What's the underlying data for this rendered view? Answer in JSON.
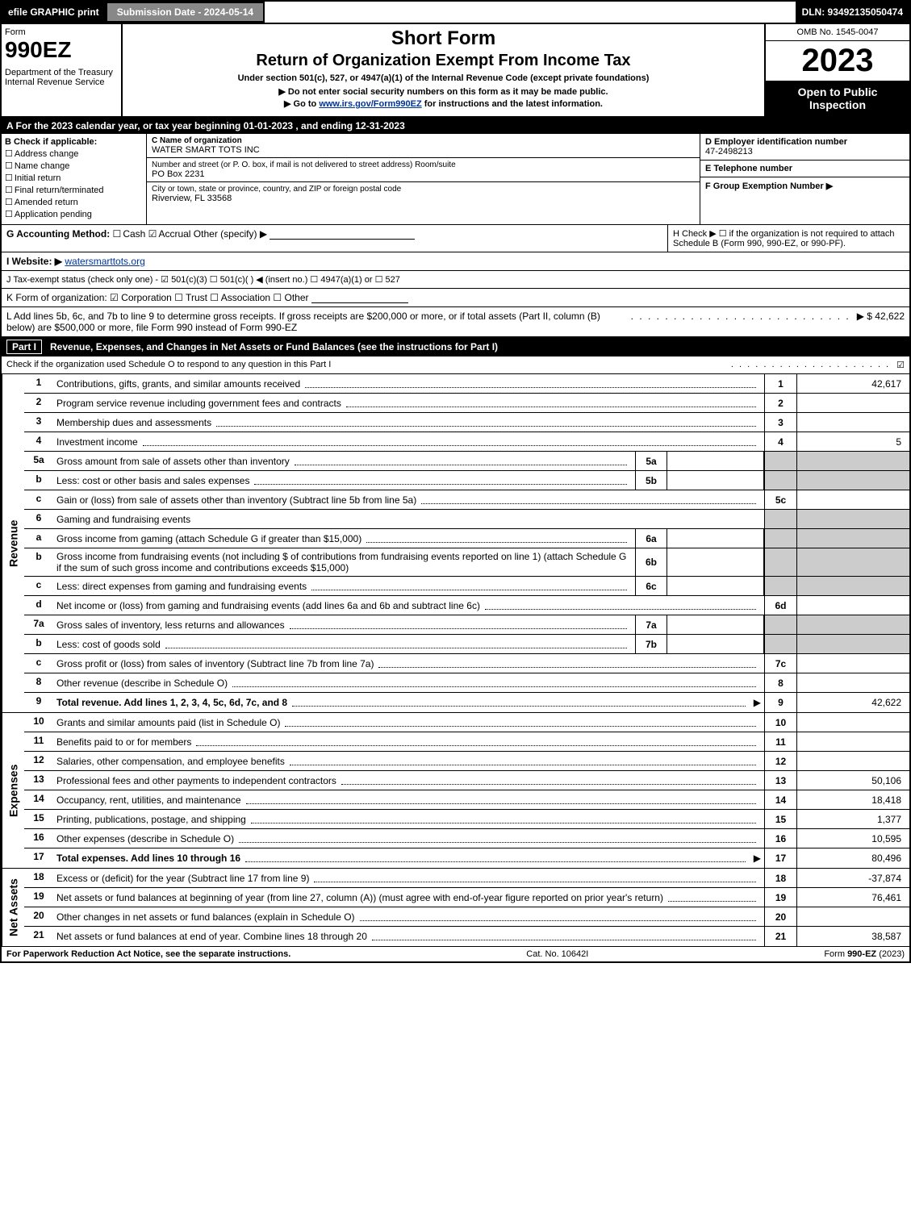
{
  "topbar": {
    "efile": "efile GRAPHIC print",
    "submission": "Submission Date - 2024-05-14",
    "dln": "DLN: 93492135050474"
  },
  "header": {
    "form_label": "Form",
    "form_number": "990EZ",
    "dept": "Department of the Treasury\nInternal Revenue Service",
    "title_short": "Short Form",
    "title_main": "Return of Organization Exempt From Income Tax",
    "subtitle": "Under section 501(c), 527, or 4947(a)(1) of the Internal Revenue Code (except private foundations)",
    "warn1": "▶ Do not enter social security numbers on this form as it may be made public.",
    "warn2_pre": "▶ Go to ",
    "warn2_link": "www.irs.gov/Form990EZ",
    "warn2_post": " for instructions and the latest information.",
    "omb": "OMB No. 1545-0047",
    "year": "2023",
    "inspection": "Open to Public Inspection"
  },
  "sectionA": "A  For the 2023 calendar year, or tax year beginning 01-01-2023 , and ending 12-31-2023",
  "sectionB": {
    "label": "B  Check if applicable:",
    "opts": [
      "Address change",
      "Name change",
      "Initial return",
      "Final return/terminated",
      "Amended return",
      "Application pending"
    ]
  },
  "sectionC": {
    "label": "C Name of organization",
    "name": "WATER SMART TOTS INC",
    "street_hint": "Number and street (or P. O. box, if mail is not delivered to street address)      Room/suite",
    "street": "PO Box 2231",
    "city_hint": "City or town, state or province, country, and ZIP or foreign postal code",
    "city": "Riverview, FL  33568"
  },
  "sectionD": {
    "label": "D Employer identification number",
    "value": "47-2498213"
  },
  "sectionE": {
    "label": "E Telephone number",
    "value": ""
  },
  "sectionF": {
    "label": "F Group Exemption Number   ▶",
    "value": ""
  },
  "sectionG": {
    "label": "G Accounting Method:",
    "cash": "Cash",
    "accrual": "Accrual",
    "other": "Other (specify) ▶"
  },
  "sectionH": "H   Check ▶  ☐  if the organization is not required to attach Schedule B (Form 990, 990-EZ, or 990-PF).",
  "sectionI": {
    "label": "I Website: ▶",
    "value": "watersmarttots.org"
  },
  "sectionJ": "J Tax-exempt status (check only one) -  ☑ 501(c)(3)  ☐ 501(c)(  ) ◀ (insert no.)  ☐ 4947(a)(1) or  ☐ 527",
  "sectionK": "K Form of organization:   ☑ Corporation   ☐ Trust   ☐ Association   ☐ Other",
  "sectionL": {
    "text": "L Add lines 5b, 6c, and 7b to line 9 to determine gross receipts. If gross receipts are $200,000 or more, or if total assets (Part II, column (B) below) are $500,000 or more, file Form 990 instead of Form 990-EZ",
    "value": "▶ $ 42,622"
  },
  "part1": {
    "name": "Part I",
    "title": "Revenue, Expenses, and Changes in Net Assets or Fund Balances (see the instructions for Part I)",
    "checknote": "Check if the organization used Schedule O to respond to any question in this Part I",
    "checked": "☑"
  },
  "revenue_label": "Revenue",
  "expenses_label": "Expenses",
  "netassets_label": "Net Assets",
  "lines": {
    "l1": {
      "n": "1",
      "d": "Contributions, gifts, grants, and similar amounts received",
      "rn": "1",
      "rv": "42,617"
    },
    "l2": {
      "n": "2",
      "d": "Program service revenue including government fees and contracts",
      "rn": "2",
      "rv": ""
    },
    "l3": {
      "n": "3",
      "d": "Membership dues and assessments",
      "rn": "3",
      "rv": ""
    },
    "l4": {
      "n": "4",
      "d": "Investment income",
      "rn": "4",
      "rv": "5"
    },
    "l5a": {
      "n": "5a",
      "d": "Gross amount from sale of assets other than inventory",
      "sc": "5a",
      "sv": ""
    },
    "l5b": {
      "n": "b",
      "d": "Less: cost or other basis and sales expenses",
      "sc": "5b",
      "sv": ""
    },
    "l5c": {
      "n": "c",
      "d": "Gain or (loss) from sale of assets other than inventory (Subtract line 5b from line 5a)",
      "rn": "5c",
      "rv": ""
    },
    "l6": {
      "n": "6",
      "d": "Gaming and fundraising events"
    },
    "l6a": {
      "n": "a",
      "d": "Gross income from gaming (attach Schedule G if greater than $15,000)",
      "sc": "6a",
      "sv": ""
    },
    "l6b": {
      "n": "b",
      "d": "Gross income from fundraising events (not including $                        of contributions from fundraising events reported on line 1) (attach Schedule G if the sum of such gross income and contributions exceeds $15,000)",
      "sc": "6b",
      "sv": ""
    },
    "l6c": {
      "n": "c",
      "d": "Less: direct expenses from gaming and fundraising events",
      "sc": "6c",
      "sv": ""
    },
    "l6d": {
      "n": "d",
      "d": "Net income or (loss) from gaming and fundraising events (add lines 6a and 6b and subtract line 6c)",
      "rn": "6d",
      "rv": ""
    },
    "l7a": {
      "n": "7a",
      "d": "Gross sales of inventory, less returns and allowances",
      "sc": "7a",
      "sv": ""
    },
    "l7b": {
      "n": "b",
      "d": "Less: cost of goods sold",
      "sc": "7b",
      "sv": ""
    },
    "l7c": {
      "n": "c",
      "d": "Gross profit or (loss) from sales of inventory (Subtract line 7b from line 7a)",
      "rn": "7c",
      "rv": ""
    },
    "l8": {
      "n": "8",
      "d": "Other revenue (describe in Schedule O)",
      "rn": "8",
      "rv": ""
    },
    "l9": {
      "n": "9",
      "d": "Total revenue. Add lines 1, 2, 3, 4, 5c, 6d, 7c, and 8",
      "rn": "9",
      "rv": "42,622",
      "bold": true
    },
    "l10": {
      "n": "10",
      "d": "Grants and similar amounts paid (list in Schedule O)",
      "rn": "10",
      "rv": ""
    },
    "l11": {
      "n": "11",
      "d": "Benefits paid to or for members",
      "rn": "11",
      "rv": ""
    },
    "l12": {
      "n": "12",
      "d": "Salaries, other compensation, and employee benefits",
      "rn": "12",
      "rv": ""
    },
    "l13": {
      "n": "13",
      "d": "Professional fees and other payments to independent contractors",
      "rn": "13",
      "rv": "50,106"
    },
    "l14": {
      "n": "14",
      "d": "Occupancy, rent, utilities, and maintenance",
      "rn": "14",
      "rv": "18,418"
    },
    "l15": {
      "n": "15",
      "d": "Printing, publications, postage, and shipping",
      "rn": "15",
      "rv": "1,377"
    },
    "l16": {
      "n": "16",
      "d": "Other expenses (describe in Schedule O)",
      "rn": "16",
      "rv": "10,595"
    },
    "l17": {
      "n": "17",
      "d": "Total expenses. Add lines 10 through 16",
      "rn": "17",
      "rv": "80,496",
      "bold": true
    },
    "l18": {
      "n": "18",
      "d": "Excess or (deficit) for the year (Subtract line 17 from line 9)",
      "rn": "18",
      "rv": "-37,874"
    },
    "l19": {
      "n": "19",
      "d": "Net assets or fund balances at beginning of year (from line 27, column (A)) (must agree with end-of-year figure reported on prior year's return)",
      "rn": "19",
      "rv": "76,461"
    },
    "l20": {
      "n": "20",
      "d": "Other changes in net assets or fund balances (explain in Schedule O)",
      "rn": "20",
      "rv": ""
    },
    "l21": {
      "n": "21",
      "d": "Net assets or fund balances at end of year. Combine lines 18 through 20",
      "rn": "21",
      "rv": "38,587"
    }
  },
  "footer": {
    "left": "For Paperwork Reduction Act Notice, see the separate instructions.",
    "mid": "Cat. No. 10642I",
    "right": "Form 990-EZ (2023)"
  }
}
